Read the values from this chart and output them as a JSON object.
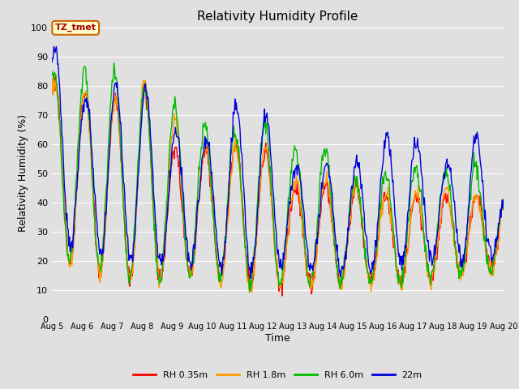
{
  "title": "Relativity Humidity Profile",
  "xlabel": "Time",
  "ylabel": "Relativity Humidity (%)",
  "ylim": [
    0,
    100
  ],
  "yticks": [
    0,
    10,
    20,
    30,
    40,
    50,
    60,
    70,
    80,
    90,
    100
  ],
  "background_color": "#e0e0e0",
  "plot_bg_color": "#e0e0e0",
  "grid_color": "#ffffff",
  "annotation_text": "TZ_tmet",
  "annotation_bg": "#ffffcc",
  "annotation_border": "#cc6600",
  "annotation_text_color": "#aa0000",
  "series_colors": [
    "#ff0000",
    "#ff9900",
    "#00bb00",
    "#0000dd"
  ],
  "series_labels": [
    "RH 0.35m",
    "RH 1.8m",
    "RH 6.0m",
    "22m"
  ],
  "x_start": 5,
  "x_end": 20,
  "x_ticks": [
    5,
    6,
    7,
    8,
    9,
    10,
    11,
    12,
    13,
    14,
    15,
    16,
    17,
    18,
    19,
    20
  ],
  "x_tick_labels": [
    "Aug 5",
    "Aug 6",
    "Aug 7",
    "Aug 8",
    "Aug 9",
    "Aug 10",
    "Aug 11",
    "Aug 12",
    "Aug 13",
    "Aug 14",
    "Aug 15",
    "Aug 16",
    "Aug 17",
    "Aug 18",
    "Aug 19",
    "Aug 20"
  ]
}
